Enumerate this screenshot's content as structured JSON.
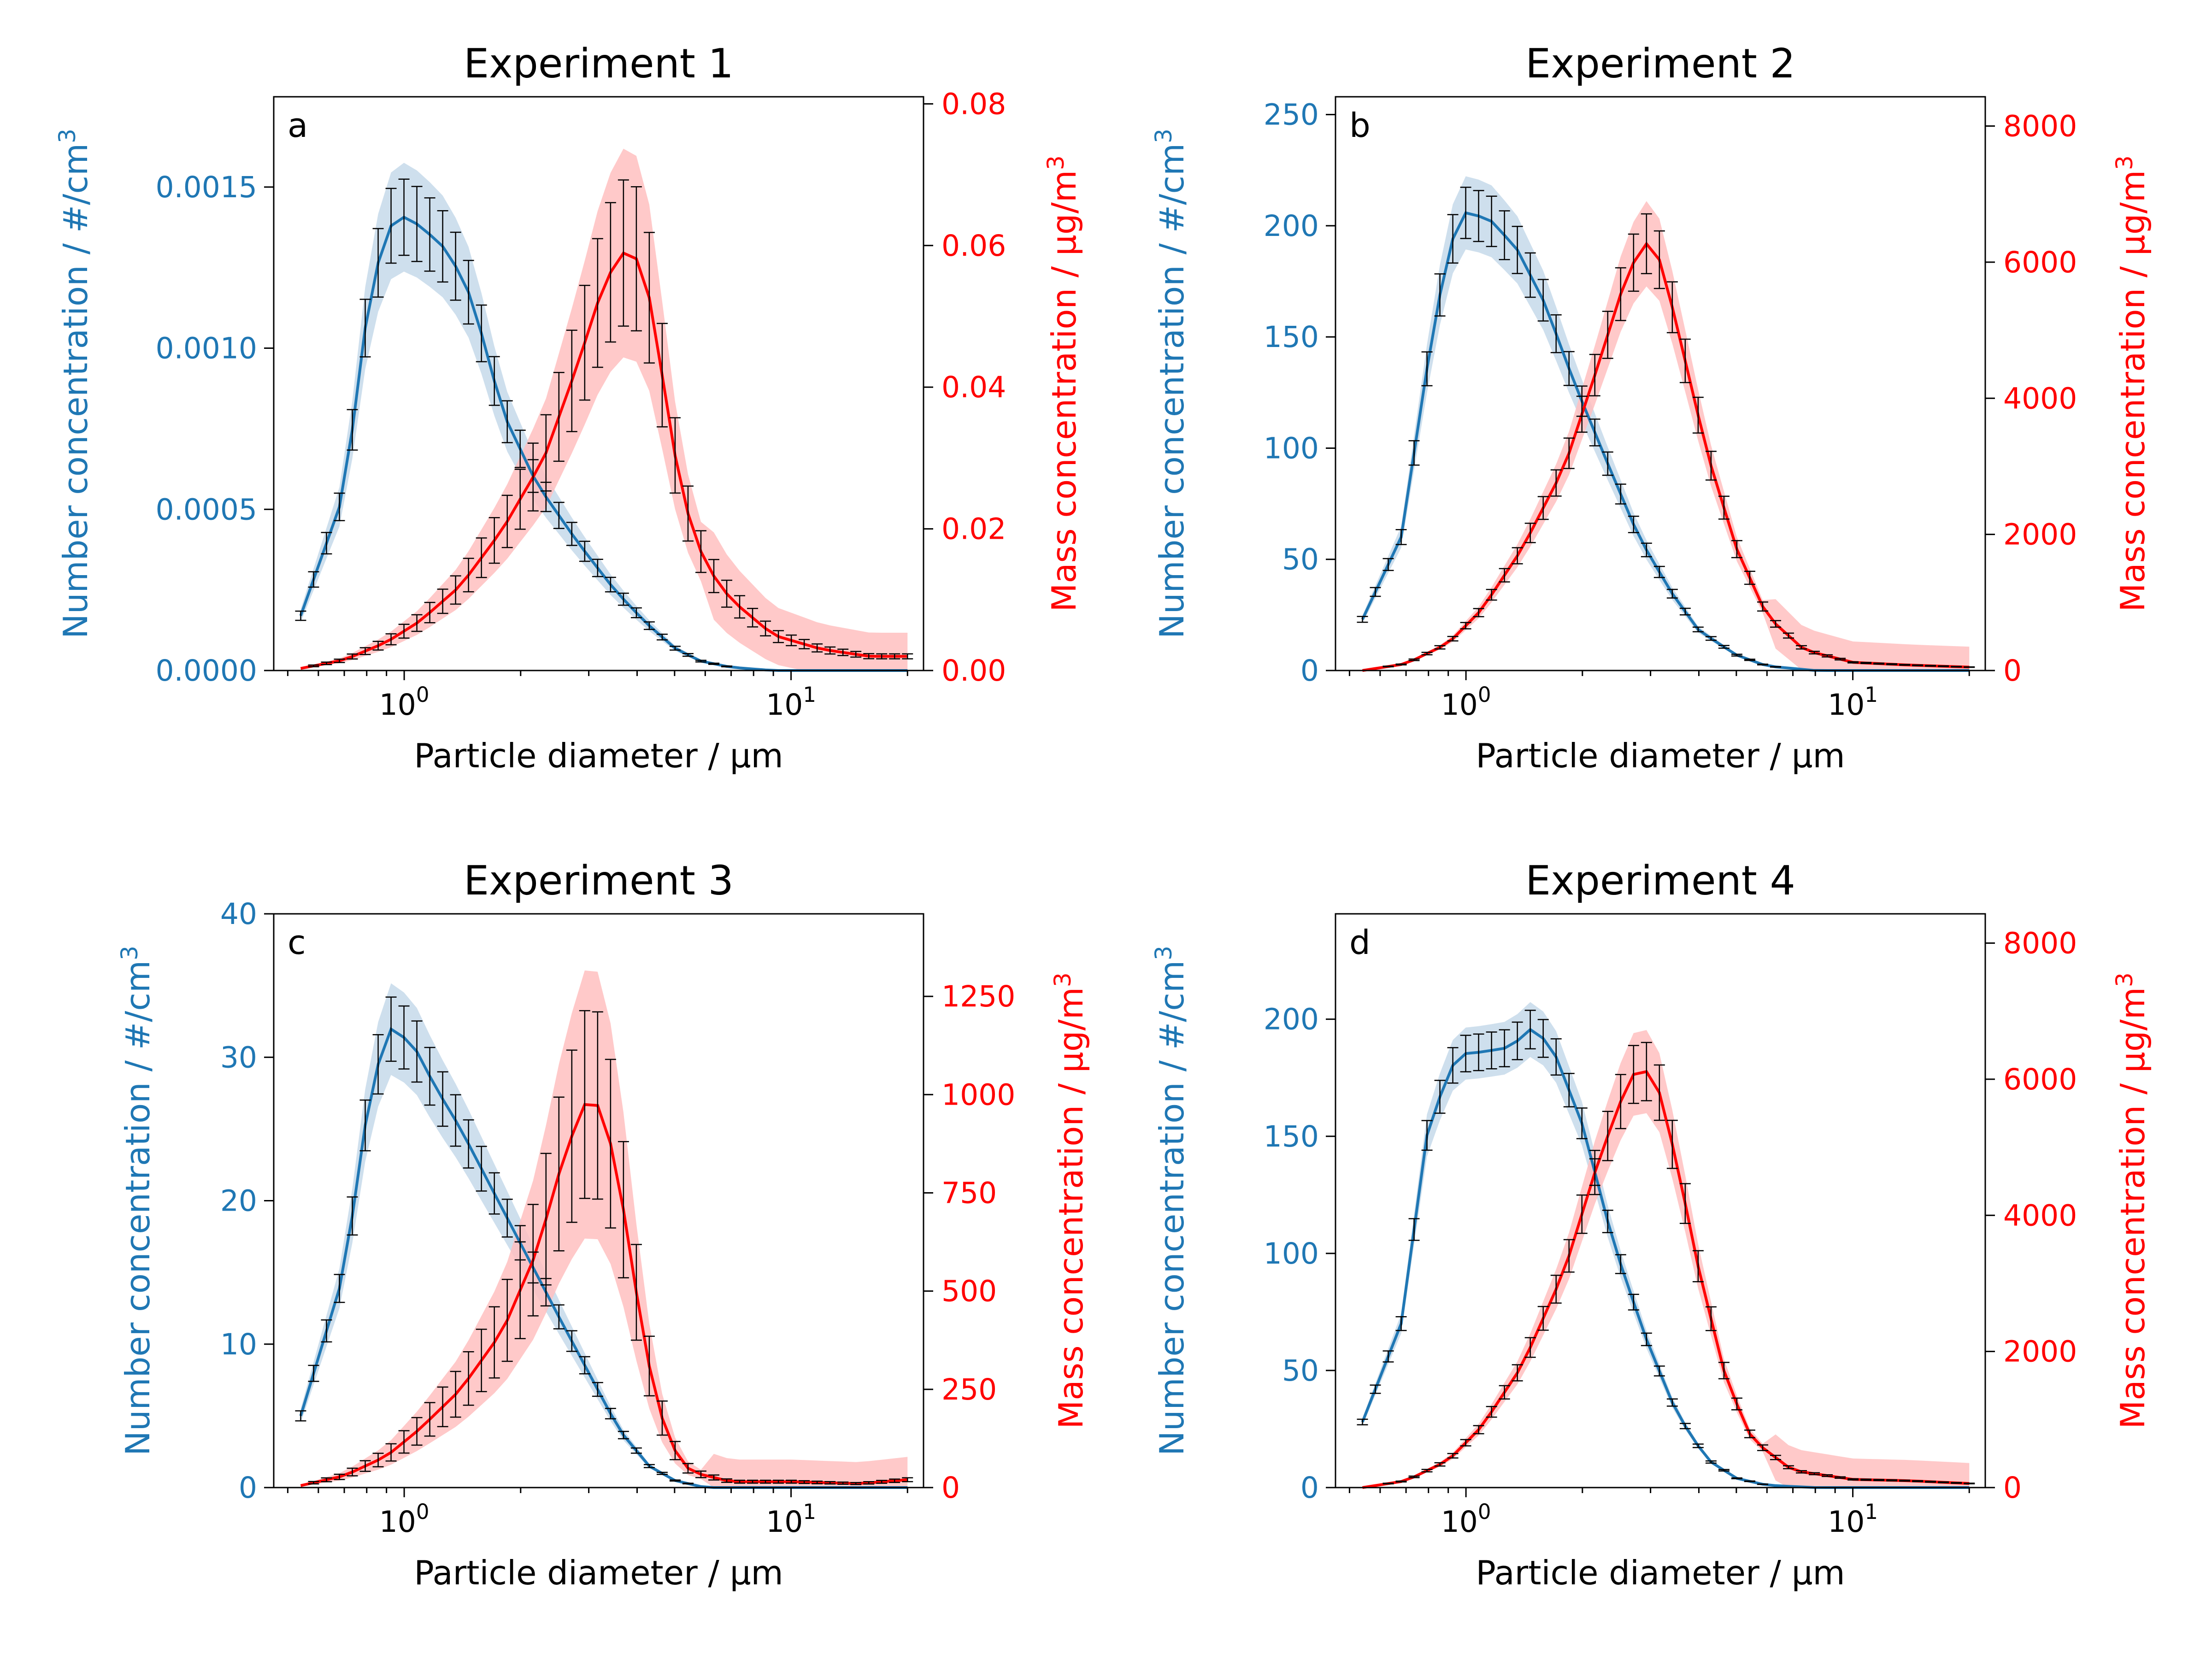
{
  "figure": {
    "panels_count": 4
  },
  "colors": {
    "number_series": "#1f77b4",
    "number_band": "#c6d9ea",
    "mass_series": "#ff0000",
    "mass_band": "#ffbfbf",
    "error_bars": "#000000",
    "axis": "#000000"
  },
  "chart_data": [
    {
      "type": "line",
      "panel_label": "a",
      "title": "Experiment 1",
      "xlabel": "Particle diameter / μm",
      "xscale": "log",
      "xlim": [
        0.46,
        22
      ],
      "x_ticks": [
        {
          "value": 1,
          "base": "10",
          "exp": "0"
        },
        {
          "value": 10,
          "base": "10",
          "exp": "1"
        }
      ],
      "ylabel_left": {
        "text": "Number concentration / #/cm",
        "sup": "3"
      },
      "ylabel_right": {
        "text": "Mass concentration / μg/m",
        "sup": "3"
      },
      "ylim_left": [
        0,
        0.00178
      ],
      "ylim_right": [
        0,
        0.081
      ],
      "left_ticks": [
        "0.0000",
        "0.0005",
        "0.0010",
        "0.0015"
      ],
      "left_tick_values": [
        0,
        0.0005,
        0.001,
        0.0015
      ],
      "right_ticks": [
        "0.00",
        "0.02",
        "0.04",
        "0.06",
        "0.08"
      ],
      "right_tick_values": [
        0,
        0.02,
        0.04,
        0.06,
        0.08
      ],
      "series": [
        {
          "axis": "left",
          "points": [
            [
              0.54,
              0.00017
            ],
            [
              0.7,
              0.00055
            ],
            [
              0.82,
              0.0012
            ],
            [
              0.95,
              0.00142
            ],
            [
              1.1,
              0.00138
            ],
            [
              1.3,
              0.0013
            ],
            [
              1.5,
              0.00115
            ],
            [
              1.8,
              0.0008
            ],
            [
              2.2,
              0.00058
            ],
            [
              2.8,
              0.0004
            ],
            [
              3.5,
              0.00025
            ],
            [
              4.2,
              0.00015
            ],
            [
              5.0,
              7e-05
            ],
            [
              5.8,
              3e-05
            ],
            [
              7,
              1e-05
            ],
            [
              9,
              0
            ],
            [
              20,
              0
            ]
          ],
          "band": 0.12
        },
        {
          "axis": "right",
          "points": [
            [
              0.54,
              0.0003
            ],
            [
              0.7,
              0.0015
            ],
            [
              0.9,
              0.004
            ],
            [
              1.1,
              0.007
            ],
            [
              1.4,
              0.012
            ],
            [
              1.8,
              0.02
            ],
            [
              2.3,
              0.03
            ],
            [
              2.8,
              0.043
            ],
            [
              3.3,
              0.055
            ],
            [
              3.8,
              0.06
            ],
            [
              4.2,
              0.056
            ],
            [
              4.7,
              0.04
            ],
            [
              5.2,
              0.025
            ],
            [
              6,
              0.015
            ],
            [
              7,
              0.01
            ],
            [
              9,
              0.005
            ],
            [
              12,
              0.003
            ],
            [
              16,
              0.002
            ],
            [
              20,
              0.002
            ]
          ],
          "band": 0.25
        }
      ]
    },
    {
      "type": "line",
      "panel_label": "b",
      "title": "Experiment 2",
      "xlabel": "Particle diameter / μm",
      "xscale": "log",
      "xlim": [
        0.46,
        22
      ],
      "x_ticks": [
        {
          "value": 1,
          "base": "10",
          "exp": "0"
        },
        {
          "value": 10,
          "base": "10",
          "exp": "1"
        }
      ],
      "ylabel_left": {
        "text": "Number concentration / #/cm",
        "sup": "3"
      },
      "ylabel_right": {
        "text": "Mass concentration / μg/m",
        "sup": "3"
      },
      "ylim_left": [
        0,
        258
      ],
      "ylim_right": [
        0,
        8430
      ],
      "left_ticks": [
        "0",
        "50",
        "100",
        "150",
        "200",
        "250"
      ],
      "left_tick_values": [
        0,
        50,
        100,
        150,
        200,
        250
      ],
      "right_ticks": [
        "0",
        "2000",
        "4000",
        "6000",
        "8000"
      ],
      "right_tick_values": [
        0,
        2000,
        4000,
        6000,
        8000
      ],
      "series": [
        {
          "axis": "left",
          "points": [
            [
              0.54,
              23
            ],
            [
              0.68,
              60
            ],
            [
              0.8,
              140
            ],
            [
              0.9,
              190
            ],
            [
              1.0,
              206
            ],
            [
              1.15,
              203
            ],
            [
              1.35,
              190
            ],
            [
              1.6,
              165
            ],
            [
              1.9,
              130
            ],
            [
              2.3,
              95
            ],
            [
              2.8,
              60
            ],
            [
              3.4,
              35
            ],
            [
              4,
              18
            ],
            [
              5,
              7
            ],
            [
              6,
              2
            ],
            [
              8,
              0
            ],
            [
              20,
              0
            ]
          ],
          "band": 0.08
        },
        {
          "axis": "right",
          "points": [
            [
              0.54,
              0
            ],
            [
              0.7,
              100
            ],
            [
              0.9,
              400
            ],
            [
              1.1,
              900
            ],
            [
              1.4,
              1800
            ],
            [
              1.8,
              3000
            ],
            [
              2.2,
              4500
            ],
            [
              2.6,
              5800
            ],
            [
              2.9,
              6300
            ],
            [
              3.2,
              6000
            ],
            [
              3.6,
              4800
            ],
            [
              4.2,
              3200
            ],
            [
              5,
              1800
            ],
            [
              6,
              800
            ],
            [
              7.5,
              300
            ],
            [
              10,
              120
            ],
            [
              14,
              80
            ],
            [
              20,
              50
            ]
          ],
          "band": 0.1
        }
      ]
    },
    {
      "type": "line",
      "panel_label": "c",
      "title": "Experiment 3",
      "xlabel": "Particle diameter / μm",
      "xscale": "log",
      "xlim": [
        0.46,
        22
      ],
      "x_ticks": [
        {
          "value": 1,
          "base": "10",
          "exp": "0"
        },
        {
          "value": 10,
          "base": "10",
          "exp": "1"
        }
      ],
      "ylabel_left": {
        "text": "Number concentration / #/cm",
        "sup": "3"
      },
      "ylabel_right": {
        "text": "Mass concentration / μg/m",
        "sup": "3"
      },
      "ylim_left": [
        0,
        40
      ],
      "ylim_right": [
        0,
        1460
      ],
      "left_ticks": [
        "0",
        "10",
        "20",
        "30",
        "40"
      ],
      "left_tick_values": [
        0,
        10,
        20,
        30,
        40
      ],
      "right_ticks": [
        "0",
        "250",
        "500",
        "750",
        "1000",
        "1250"
      ],
      "right_tick_values": [
        0,
        250,
        500,
        750,
        1000,
        1250
      ],
      "series": [
        {
          "axis": "left",
          "points": [
            [
              0.54,
              5
            ],
            [
              0.7,
              15
            ],
            [
              0.82,
              28
            ],
            [
              0.92,
              32
            ],
            [
              1.05,
              31
            ],
            [
              1.2,
              28
            ],
            [
              1.4,
              25
            ],
            [
              1.6,
              22
            ],
            [
              2.0,
              17
            ],
            [
              2.5,
              12
            ],
            [
              3.0,
              8
            ],
            [
              3.6,
              4
            ],
            [
              4.3,
              1.5
            ],
            [
              5,
              0.5
            ],
            [
              6,
              0
            ],
            [
              20,
              0
            ]
          ],
          "band": 0.1
        },
        {
          "axis": "right",
          "points": [
            [
              0.54,
              5
            ],
            [
              0.7,
              30
            ],
            [
              0.9,
              80
            ],
            [
              1.1,
              150
            ],
            [
              1.4,
              250
            ],
            [
              1.8,
              400
            ],
            [
              2.2,
              600
            ],
            [
              2.6,
              850
            ],
            [
              3.0,
              1000
            ],
            [
              3.3,
              950
            ],
            [
              3.7,
              700
            ],
            [
              4.2,
              350
            ],
            [
              4.8,
              120
            ],
            [
              5.5,
              40
            ],
            [
              7,
              15
            ],
            [
              10,
              15
            ],
            [
              15,
              10
            ],
            [
              20,
              20
            ]
          ],
          "band": 0.35
        }
      ]
    },
    {
      "type": "line",
      "panel_label": "d",
      "title": "Experiment 4",
      "xlabel": "Particle diameter / μm",
      "xscale": "log",
      "xlim": [
        0.46,
        22
      ],
      "x_ticks": [
        {
          "value": 1,
          "base": "10",
          "exp": "0"
        },
        {
          "value": 10,
          "base": "10",
          "exp": "1"
        }
      ],
      "ylabel_left": {
        "text": "Number concentration / #/cm",
        "sup": "3"
      },
      "ylabel_right": {
        "text": "Mass concentration / μg/m",
        "sup": "3"
      },
      "ylim_left": [
        0,
        245
      ],
      "ylim_right": [
        0,
        8430
      ],
      "left_ticks": [
        "0",
        "50",
        "100",
        "150",
        "200"
      ],
      "left_tick_values": [
        0,
        50,
        100,
        150,
        200
      ],
      "right_ticks": [
        "0",
        "2000",
        "4000",
        "6000",
        "8000"
      ],
      "right_tick_values": [
        0,
        2000,
        4000,
        6000,
        8000
      ],
      "series": [
        {
          "axis": "left",
          "points": [
            [
              0.54,
              28
            ],
            [
              0.68,
              70
            ],
            [
              0.8,
              155
            ],
            [
              0.95,
              185
            ],
            [
              1.1,
              186
            ],
            [
              1.3,
              188
            ],
            [
              1.5,
              197
            ],
            [
              1.7,
              185
            ],
            [
              2.0,
              155
            ],
            [
              2.4,
              105
            ],
            [
              2.9,
              65
            ],
            [
              3.5,
              32
            ],
            [
              4.2,
              12
            ],
            [
              5,
              4
            ],
            [
              6,
              1
            ],
            [
              8,
              0
            ],
            [
              20,
              0
            ]
          ],
          "band": 0.06
        },
        {
          "axis": "right",
          "points": [
            [
              0.54,
              0
            ],
            [
              0.7,
              100
            ],
            [
              0.9,
              400
            ],
            [
              1.1,
              900
            ],
            [
              1.4,
              1800
            ],
            [
              1.8,
              3200
            ],
            [
              2.2,
              4800
            ],
            [
              2.6,
              5900
            ],
            [
              2.8,
              6200
            ],
            [
              3.1,
              6000
            ],
            [
              3.5,
              4800
            ],
            [
              4.0,
              3200
            ],
            [
              4.7,
              1600
            ],
            [
              5.5,
              700
            ],
            [
              7,
              250
            ],
            [
              10,
              120
            ],
            [
              14,
              100
            ],
            [
              20,
              60
            ]
          ],
          "band": 0.1
        }
      ]
    }
  ]
}
